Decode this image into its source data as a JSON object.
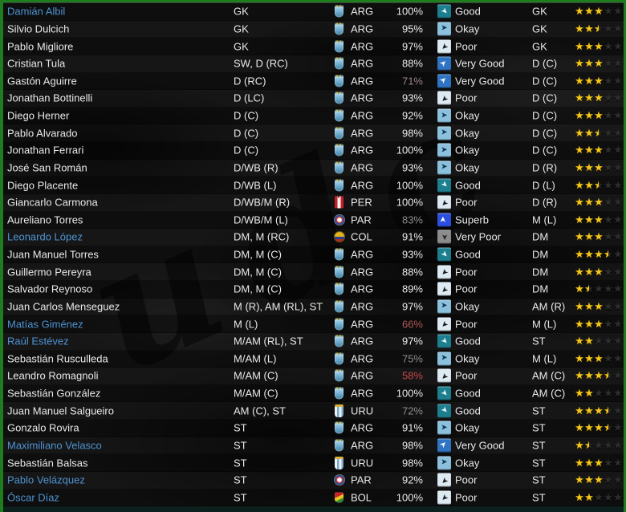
{
  "watermark_text": "udc",
  "colors": {
    "border_green": "#1e7e1e",
    "bottom_bar": "#0c201e",
    "link_blue": "#4e93d2",
    "text": "#e9e9e9",
    "star_gold": "#f3c71c",
    "star_empty": "#2d2d2d"
  },
  "rating": {
    "max_stars": 5
  },
  "form_styles": {
    "Superb": {
      "bg": "#2b4fe0",
      "fg": "#ffffff"
    },
    "Very Good": {
      "bg": "#2f74c4",
      "fg": "#f2f6fa"
    },
    "Good": {
      "bg": "#1c7f90",
      "fg": "#eef6f8"
    },
    "Okay": {
      "bg": "#8cc1de",
      "fg": "#12374e"
    },
    "Poor": {
      "bg": "#ddeaf2",
      "fg": "#15181a"
    },
    "Very Poor": {
      "bg": "#8c8c8c",
      "fg": "#262626"
    }
  },
  "rows": [
    {
      "name": "Damián Albil",
      "link": true,
      "pos": "GK",
      "nation": "ARG",
      "cond": "100%",
      "form": "Good",
      "pos2": "GK",
      "stars": 3
    },
    {
      "name": "Silvio Dulcich",
      "link": false,
      "pos": "GK",
      "nation": "ARG",
      "cond": "95%",
      "form": "Okay",
      "pos2": "GK",
      "stars": 2.5
    },
    {
      "name": "Pablo Migliore",
      "link": false,
      "pos": "GK",
      "nation": "ARG",
      "cond": "97%",
      "form": "Poor",
      "pos2": "GK",
      "stars": 3
    },
    {
      "name": "Cristian Tula",
      "link": false,
      "pos": "SW, D (RC)",
      "nation": "ARG",
      "cond": "88%",
      "form": "Very Good",
      "pos2": "D (C)",
      "stars": 3
    },
    {
      "name": "Gastón Aguirre",
      "link": false,
      "pos": "D (RC)",
      "nation": "ARG",
      "cond": "71%",
      "cond_color": "#9b8288",
      "form": "Very Good",
      "pos2": "D (C)",
      "stars": 3
    },
    {
      "name": "Jonathan Bottinelli",
      "link": false,
      "pos": "D (LC)",
      "nation": "ARG",
      "cond": "93%",
      "form": "Poor",
      "pos2": "D (C)",
      "stars": 3
    },
    {
      "name": "Diego Herner",
      "link": false,
      "pos": "D (C)",
      "nation": "ARG",
      "cond": "92%",
      "form": "Okay",
      "pos2": "D (C)",
      "stars": 3
    },
    {
      "name": "Pablo Alvarado",
      "link": false,
      "pos": "D (C)",
      "nation": "ARG",
      "cond": "98%",
      "form": "Okay",
      "pos2": "D (C)",
      "stars": 2.5
    },
    {
      "name": "Jonathan Ferrari",
      "link": false,
      "pos": "D (C)",
      "nation": "ARG",
      "cond": "100%",
      "form": "Okay",
      "pos2": "D (C)",
      "stars": 3
    },
    {
      "name": "José San Román",
      "link": false,
      "pos": "D/WB (R)",
      "nation": "ARG",
      "cond": "93%",
      "form": "Okay",
      "pos2": "D (R)",
      "stars": 3
    },
    {
      "name": "Diego Placente",
      "link": false,
      "pos": "D/WB (L)",
      "nation": "ARG",
      "cond": "100%",
      "form": "Good",
      "pos2": "D (L)",
      "stars": 2.5
    },
    {
      "name": "Giancarlo Carmona",
      "link": false,
      "pos": "D/WB/M (R)",
      "nation": "PER",
      "cond": "100%",
      "form": "Poor",
      "pos2": "D (R)",
      "stars": 3
    },
    {
      "name": "Aureliano Torres",
      "link": false,
      "pos": "D/WB/M (L)",
      "nation": "PAR",
      "cond": "83%",
      "cond_color": "#8d8d8d",
      "form": "Superb",
      "pos2": "M (L)",
      "stars": 3
    },
    {
      "name": "Leonardo López",
      "link": true,
      "pos": "DM, M (RC)",
      "nation": "COL",
      "cond": "91%",
      "form": "Very Poor",
      "pos2": "DM",
      "stars": 3
    },
    {
      "name": "Juan Manuel Torres",
      "link": false,
      "pos": "DM, M (C)",
      "nation": "ARG",
      "cond": "93%",
      "form": "Good",
      "pos2": "DM",
      "stars": 3.5
    },
    {
      "name": "Guillermo Pereyra",
      "link": false,
      "pos": "DM, M (C)",
      "nation": "ARG",
      "cond": "88%",
      "form": "Poor",
      "pos2": "DM",
      "stars": 3
    },
    {
      "name": "Salvador Reynoso",
      "link": false,
      "pos": "DM, M (C)",
      "nation": "ARG",
      "cond": "89%",
      "form": "Poor",
      "pos2": "DM",
      "stars": 1.5
    },
    {
      "name": "Juan Carlos Menseguez",
      "link": false,
      "pos": "M (R), AM (RL), ST",
      "nation": "ARG",
      "cond": "97%",
      "form": "Okay",
      "pos2": "AM (R)",
      "stars": 3
    },
    {
      "name": "Matías Giménez",
      "link": true,
      "pos": "M (L)",
      "nation": "ARG",
      "cond": "66%",
      "cond_color": "#b25858",
      "form": "Poor",
      "pos2": "M (L)",
      "stars": 3
    },
    {
      "name": "Raúl Estévez",
      "link": true,
      "pos": "M/AM (RL), ST",
      "nation": "ARG",
      "cond": "97%",
      "form": "Good",
      "pos2": "ST",
      "stars": 2
    },
    {
      "name": "Sebastián Rusculleda",
      "link": false,
      "pos": "M/AM (L)",
      "nation": "ARG",
      "cond": "75%",
      "cond_color": "#8d8d8d",
      "form": "Okay",
      "pos2": "M (L)",
      "stars": 3
    },
    {
      "name": "Leandro Romagnoli",
      "link": false,
      "pos": "M/AM (C)",
      "nation": "ARG",
      "cond": "58%",
      "cond_color": "#c44848",
      "form": "Poor",
      "pos2": "AM (C)",
      "stars": 3.5
    },
    {
      "name": "Sebastián González",
      "link": false,
      "pos": "M/AM (C)",
      "nation": "ARG",
      "cond": "100%",
      "form": "Good",
      "pos2": "AM (C)",
      "stars": 2
    },
    {
      "name": "Juan Manuel Salgueiro",
      "link": false,
      "pos": "AM (C), ST",
      "nation": "URU",
      "cond": "72%",
      "cond_color": "#8d8d8d",
      "form": "Good",
      "pos2": "ST",
      "stars": 3.5
    },
    {
      "name": "Gonzalo Rovira",
      "link": false,
      "pos": "ST",
      "nation": "ARG",
      "cond": "91%",
      "form": "Okay",
      "pos2": "ST",
      "stars": 3.5
    },
    {
      "name": "Maximiliano Velasco",
      "link": true,
      "pos": "ST",
      "nation": "ARG",
      "cond": "98%",
      "form": "Very Good",
      "pos2": "ST",
      "stars": 1.5
    },
    {
      "name": "Sebastián Balsas",
      "link": false,
      "pos": "ST",
      "nation": "URU",
      "cond": "98%",
      "form": "Okay",
      "pos2": "ST",
      "stars": 3
    },
    {
      "name": "Pablo Velázquez",
      "link": true,
      "pos": "ST",
      "nation": "PAR",
      "cond": "92%",
      "form": "Poor",
      "pos2": "ST",
      "stars": 3
    },
    {
      "name": "Óscar Díaz",
      "link": true,
      "pos": "ST",
      "nation": "BOL",
      "cond": "100%",
      "form": "Poor",
      "pos2": "ST",
      "stars": 2
    }
  ]
}
